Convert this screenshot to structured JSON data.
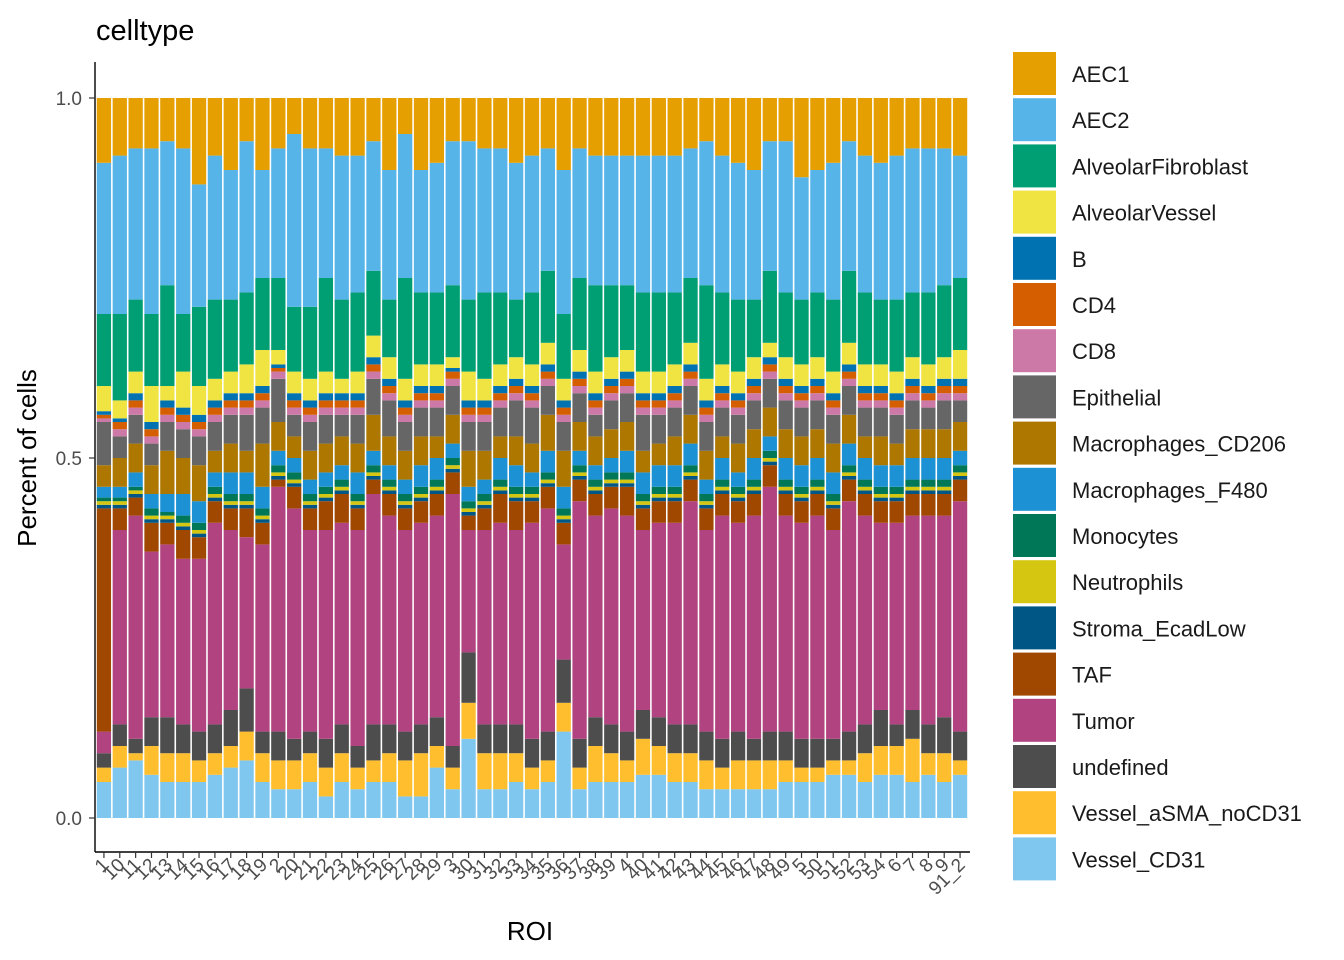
{
  "chart_data": {
    "type": "bar",
    "stacked": true,
    "title": "celltype",
    "xlabel": "ROI",
    "ylabel": "Percent of cells",
    "ylim": [
      0,
      1
    ],
    "yticks": [
      "0.0",
      "0.5",
      "1.0"
    ],
    "grid": false,
    "legend_position": "right",
    "categories": [
      "1",
      "10",
      "11",
      "12",
      "13",
      "14",
      "15",
      "16",
      "17",
      "18",
      "19",
      "2",
      "20",
      "21",
      "22",
      "23",
      "24",
      "25",
      "26",
      "27",
      "28",
      "29",
      "3",
      "30",
      "31",
      "32",
      "33",
      "34",
      "35",
      "36",
      "37",
      "38",
      "39",
      "4",
      "40",
      "41",
      "42",
      "43",
      "44",
      "45",
      "46",
      "47",
      "48",
      "49",
      "5",
      "50",
      "51",
      "52",
      "53",
      "54",
      "6",
      "7",
      "8",
      "9",
      "91_2"
    ],
    "x_tick_labels": [
      "1",
      "10",
      "11",
      "12",
      "13",
      "14",
      "15",
      "16",
      "17",
      "18",
      "19",
      "2",
      "20",
      "21",
      "22",
      "23",
      "24",
      "25",
      "26",
      "27",
      "28",
      "29",
      "3",
      "30",
      "31",
      "32",
      "33",
      "34",
      "35",
      "36",
      "37",
      "38",
      "39",
      "4",
      "40",
      "41",
      "42",
      "43",
      "44",
      "45",
      "46",
      "47",
      "48",
      "49",
      "5",
      "50",
      "51",
      "52",
      "53",
      "54",
      "6",
      "7",
      "8",
      "9",
      "91_2"
    ],
    "series_order_bottom_to_top": [
      "Vessel_CD31",
      "Vessel_aSMA_noCD31",
      "undefined",
      "Tumor",
      "TAF",
      "Stroma_EcadLow",
      "Neutrophils",
      "Monocytes",
      "Macrophages_F480",
      "Macrophages_CD206",
      "Epithelial",
      "CD8",
      "CD4",
      "B",
      "AlveolarVessel",
      "AlveolarFibroblast",
      "AEC2",
      "AEC1"
    ],
    "series": [
      {
        "name": "AEC1",
        "color": "#E69F00"
      },
      {
        "name": "AEC2",
        "color": "#56B4E9"
      },
      {
        "name": "AlveolarFibroblast",
        "color": "#009E73"
      },
      {
        "name": "AlveolarVessel",
        "color": "#F0E442"
      },
      {
        "name": "B",
        "color": "#0072B2"
      },
      {
        "name": "CD4",
        "color": "#D55E00"
      },
      {
        "name": "CD8",
        "color": "#CC79A7"
      },
      {
        "name": "Epithelial",
        "color": "#666666"
      },
      {
        "name": "Macrophages_CD206",
        "color": "#AD7700"
      },
      {
        "name": "Macrophages_F480",
        "color": "#1C91D4"
      },
      {
        "name": "Monocytes",
        "color": "#007756"
      },
      {
        "name": "Neutrophils",
        "color": "#D5C711"
      },
      {
        "name": "Stroma_EcadLow",
        "color": "#005685"
      },
      {
        "name": "TAF",
        "color": "#A04700"
      },
      {
        "name": "Tumor",
        "color": "#B14380"
      },
      {
        "name": "undefined",
        "color": "#4D4D4D"
      },
      {
        "name": "Vessel_aSMA_noCD31",
        "color": "#FFBE2D"
      },
      {
        "name": "Vessel_CD31",
        "color": "#80C7EF"
      }
    ],
    "cumulative_tops_bottom_to_top": [
      [
        0.05,
        0.07,
        0.09,
        0.12,
        0.43,
        0.435,
        0.44,
        0.445,
        0.46,
        0.49,
        0.55,
        0.555,
        0.56,
        0.565,
        0.6,
        0.7,
        0.91,
        1.0
      ],
      [
        0.07,
        0.1,
        0.13,
        0.4,
        0.43,
        0.435,
        0.44,
        0.445,
        0.46,
        0.5,
        0.53,
        0.54,
        0.55,
        0.555,
        0.58,
        0.7,
        0.92,
        1.0
      ],
      [
        0.08,
        0.09,
        0.11,
        0.42,
        0.445,
        0.45,
        0.455,
        0.46,
        0.48,
        0.52,
        0.56,
        0.57,
        0.58,
        0.59,
        0.62,
        0.72,
        0.93,
        1.0
      ],
      [
        0.06,
        0.1,
        0.14,
        0.37,
        0.41,
        0.415,
        0.42,
        0.43,
        0.45,
        0.49,
        0.52,
        0.53,
        0.54,
        0.55,
        0.6,
        0.7,
        0.93,
        1.0
      ],
      [
        0.05,
        0.09,
        0.14,
        0.38,
        0.41,
        0.415,
        0.42,
        0.425,
        0.45,
        0.51,
        0.55,
        0.56,
        0.57,
        0.58,
        0.6,
        0.74,
        0.94,
        1.0
      ],
      [
        0.05,
        0.09,
        0.13,
        0.36,
        0.4,
        0.405,
        0.41,
        0.42,
        0.45,
        0.5,
        0.54,
        0.55,
        0.56,
        0.57,
        0.62,
        0.7,
        0.93,
        1.0
      ],
      [
        0.05,
        0.08,
        0.12,
        0.36,
        0.39,
        0.395,
        0.4,
        0.41,
        0.44,
        0.49,
        0.53,
        0.54,
        0.55,
        0.56,
        0.6,
        0.71,
        0.88,
        1.0
      ],
      [
        0.06,
        0.09,
        0.13,
        0.41,
        0.44,
        0.445,
        0.45,
        0.46,
        0.48,
        0.51,
        0.55,
        0.56,
        0.57,
        0.58,
        0.61,
        0.72,
        0.92,
        1.0
      ],
      [
        0.07,
        0.1,
        0.15,
        0.4,
        0.43,
        0.435,
        0.44,
        0.45,
        0.48,
        0.52,
        0.56,
        0.57,
        0.58,
        0.59,
        0.62,
        0.72,
        0.9,
        1.0
      ],
      [
        0.08,
        0.12,
        0.18,
        0.39,
        0.43,
        0.435,
        0.44,
        0.45,
        0.48,
        0.51,
        0.56,
        0.57,
        0.58,
        0.59,
        0.63,
        0.73,
        0.94,
        1.0
      ],
      [
        0.05,
        0.09,
        0.12,
        0.38,
        0.41,
        0.415,
        0.42,
        0.43,
        0.46,
        0.52,
        0.57,
        0.58,
        0.59,
        0.6,
        0.65,
        0.75,
        0.9,
        1.0
      ],
      [
        0.04,
        0.08,
        0.12,
        0.46,
        0.47,
        0.475,
        0.48,
        0.49,
        0.51,
        0.55,
        0.61,
        0.62,
        0.625,
        0.63,
        0.65,
        0.75,
        0.93,
        1.0
      ],
      [
        0.04,
        0.08,
        0.11,
        0.43,
        0.46,
        0.465,
        0.47,
        0.48,
        0.5,
        0.53,
        0.56,
        0.57,
        0.58,
        0.59,
        0.62,
        0.71,
        0.95,
        1.0
      ],
      [
        0.05,
        0.09,
        0.12,
        0.4,
        0.43,
        0.435,
        0.44,
        0.45,
        0.47,
        0.51,
        0.55,
        0.56,
        0.57,
        0.58,
        0.61,
        0.71,
        0.93,
        1.0
      ],
      [
        0.03,
        0.07,
        0.11,
        0.4,
        0.44,
        0.445,
        0.45,
        0.46,
        0.48,
        0.52,
        0.56,
        0.57,
        0.58,
        0.59,
        0.62,
        0.75,
        0.93,
        1.0
      ],
      [
        0.05,
        0.09,
        0.13,
        0.41,
        0.45,
        0.455,
        0.46,
        0.47,
        0.49,
        0.53,
        0.56,
        0.57,
        0.58,
        0.59,
        0.61,
        0.72,
        0.92,
        1.0
      ],
      [
        0.04,
        0.07,
        0.1,
        0.4,
        0.43,
        0.435,
        0.44,
        0.45,
        0.48,
        0.52,
        0.56,
        0.57,
        0.58,
        0.59,
        0.62,
        0.73,
        0.92,
        1.0
      ],
      [
        0.05,
        0.08,
        0.13,
        0.45,
        0.47,
        0.475,
        0.48,
        0.49,
        0.51,
        0.56,
        0.61,
        0.62,
        0.63,
        0.64,
        0.67,
        0.76,
        0.94,
        1.0
      ],
      [
        0.05,
        0.09,
        0.13,
        0.42,
        0.45,
        0.455,
        0.46,
        0.47,
        0.49,
        0.53,
        0.58,
        0.59,
        0.6,
        0.61,
        0.64,
        0.72,
        0.9,
        1.0
      ],
      [
        0.03,
        0.08,
        0.12,
        0.4,
        0.43,
        0.435,
        0.44,
        0.45,
        0.47,
        0.51,
        0.55,
        0.56,
        0.57,
        0.58,
        0.61,
        0.75,
        0.95,
        1.0
      ],
      [
        0.03,
        0.09,
        0.13,
        0.41,
        0.44,
        0.445,
        0.45,
        0.46,
        0.49,
        0.53,
        0.57,
        0.58,
        0.59,
        0.6,
        0.63,
        0.73,
        0.9,
        1.0
      ],
      [
        0.07,
        0.1,
        0.14,
        0.42,
        0.45,
        0.455,
        0.46,
        0.47,
        0.5,
        0.53,
        0.57,
        0.58,
        0.59,
        0.6,
        0.63,
        0.73,
        0.91,
        1.0
      ],
      [
        0.04,
        0.07,
        0.1,
        0.45,
        0.48,
        0.485,
        0.49,
        0.5,
        0.52,
        0.56,
        0.6,
        0.61,
        0.62,
        0.625,
        0.64,
        0.74,
        0.94,
        1.0
      ],
      [
        0.11,
        0.16,
        0.23,
        0.4,
        0.42,
        0.425,
        0.43,
        0.44,
        0.46,
        0.51,
        0.55,
        0.56,
        0.57,
        0.58,
        0.62,
        0.72,
        0.94,
        1.0
      ],
      [
        0.04,
        0.09,
        0.13,
        0.4,
        0.43,
        0.435,
        0.44,
        0.45,
        0.47,
        0.51,
        0.55,
        0.56,
        0.57,
        0.58,
        0.61,
        0.73,
        0.93,
        1.0
      ],
      [
        0.04,
        0.09,
        0.13,
        0.41,
        0.45,
        0.455,
        0.46,
        0.47,
        0.5,
        0.53,
        0.57,
        0.58,
        0.59,
        0.6,
        0.63,
        0.73,
        0.93,
        1.0
      ],
      [
        0.05,
        0.09,
        0.13,
        0.4,
        0.44,
        0.445,
        0.45,
        0.46,
        0.49,
        0.53,
        0.58,
        0.59,
        0.6,
        0.61,
        0.64,
        0.72,
        0.91,
        1.0
      ],
      [
        0.04,
        0.07,
        0.11,
        0.41,
        0.44,
        0.445,
        0.45,
        0.46,
        0.48,
        0.52,
        0.57,
        0.58,
        0.59,
        0.6,
        0.63,
        0.73,
        0.92,
        1.0
      ],
      [
        0.05,
        0.08,
        0.12,
        0.43,
        0.46,
        0.465,
        0.47,
        0.48,
        0.51,
        0.56,
        0.6,
        0.61,
        0.62,
        0.63,
        0.66,
        0.76,
        0.93,
        1.0
      ],
      [
        0.12,
        0.16,
        0.22,
        0.38,
        0.41,
        0.415,
        0.42,
        0.43,
        0.46,
        0.51,
        0.55,
        0.56,
        0.57,
        0.58,
        0.61,
        0.7,
        0.9,
        1.0
      ],
      [
        0.04,
        0.07,
        0.11,
        0.44,
        0.47,
        0.475,
        0.48,
        0.49,
        0.51,
        0.55,
        0.59,
        0.6,
        0.61,
        0.62,
        0.65,
        0.75,
        0.93,
        1.0
      ],
      [
        0.05,
        0.1,
        0.14,
        0.42,
        0.45,
        0.455,
        0.46,
        0.47,
        0.49,
        0.53,
        0.56,
        0.57,
        0.58,
        0.59,
        0.62,
        0.74,
        0.92,
        1.0
      ],
      [
        0.05,
        0.09,
        0.13,
        0.43,
        0.46,
        0.465,
        0.47,
        0.48,
        0.5,
        0.54,
        0.58,
        0.59,
        0.6,
        0.61,
        0.64,
        0.74,
        0.92,
        1.0
      ],
      [
        0.05,
        0.08,
        0.12,
        0.42,
        0.46,
        0.465,
        0.47,
        0.48,
        0.51,
        0.55,
        0.59,
        0.6,
        0.61,
        0.62,
        0.65,
        0.74,
        0.92,
        1.0
      ],
      [
        0.06,
        0.11,
        0.15,
        0.4,
        0.43,
        0.435,
        0.44,
        0.45,
        0.48,
        0.51,
        0.56,
        0.57,
        0.58,
        0.59,
        0.62,
        0.73,
        0.92,
        1.0
      ],
      [
        0.06,
        0.1,
        0.14,
        0.41,
        0.44,
        0.445,
        0.45,
        0.46,
        0.49,
        0.52,
        0.56,
        0.57,
        0.58,
        0.59,
        0.62,
        0.73,
        0.92,
        1.0
      ],
      [
        0.05,
        0.09,
        0.13,
        0.41,
        0.44,
        0.445,
        0.45,
        0.46,
        0.49,
        0.53,
        0.57,
        0.58,
        0.59,
        0.6,
        0.63,
        0.73,
        0.92,
        1.0
      ],
      [
        0.05,
        0.09,
        0.13,
        0.44,
        0.47,
        0.475,
        0.48,
        0.49,
        0.52,
        0.56,
        0.6,
        0.61,
        0.62,
        0.63,
        0.66,
        0.75,
        0.93,
        1.0
      ],
      [
        0.04,
        0.08,
        0.12,
        0.4,
        0.43,
        0.435,
        0.44,
        0.45,
        0.47,
        0.51,
        0.55,
        0.56,
        0.57,
        0.58,
        0.61,
        0.74,
        0.94,
        1.0
      ],
      [
        0.04,
        0.07,
        0.11,
        0.42,
        0.45,
        0.455,
        0.46,
        0.47,
        0.5,
        0.53,
        0.57,
        0.58,
        0.59,
        0.6,
        0.63,
        0.73,
        0.92,
        1.0
      ],
      [
        0.04,
        0.08,
        0.12,
        0.41,
        0.44,
        0.445,
        0.45,
        0.46,
        0.48,
        0.52,
        0.56,
        0.57,
        0.58,
        0.59,
        0.62,
        0.72,
        0.91,
        1.0
      ],
      [
        0.04,
        0.08,
        0.11,
        0.42,
        0.45,
        0.455,
        0.46,
        0.47,
        0.5,
        0.54,
        0.58,
        0.59,
        0.6,
        0.61,
        0.64,
        0.72,
        0.9,
        1.0
      ],
      [
        0.04,
        0.08,
        0.12,
        0.46,
        0.49,
        0.495,
        0.5,
        0.51,
        0.53,
        0.57,
        0.61,
        0.62,
        0.63,
        0.64,
        0.66,
        0.76,
        0.94,
        1.0
      ],
      [
        0.05,
        0.08,
        0.12,
        0.42,
        0.45,
        0.455,
        0.46,
        0.47,
        0.5,
        0.54,
        0.58,
        0.59,
        0.6,
        0.61,
        0.64,
        0.73,
        0.94,
        1.0
      ],
      [
        0.05,
        0.07,
        0.11,
        0.41,
        0.44,
        0.445,
        0.45,
        0.46,
        0.49,
        0.53,
        0.57,
        0.58,
        0.59,
        0.6,
        0.63,
        0.72,
        0.89,
        1.0
      ],
      [
        0.05,
        0.07,
        0.11,
        0.42,
        0.45,
        0.455,
        0.46,
        0.47,
        0.5,
        0.54,
        0.58,
        0.59,
        0.6,
        0.61,
        0.64,
        0.73,
        0.9,
        1.0
      ],
      [
        0.06,
        0.08,
        0.11,
        0.4,
        0.43,
        0.435,
        0.44,
        0.45,
        0.48,
        0.52,
        0.56,
        0.57,
        0.58,
        0.59,
        0.62,
        0.72,
        0.91,
        1.0
      ],
      [
        0.06,
        0.08,
        0.12,
        0.44,
        0.47,
        0.475,
        0.48,
        0.49,
        0.52,
        0.56,
        0.6,
        0.61,
        0.62,
        0.63,
        0.66,
        0.76,
        0.94,
        1.0
      ],
      [
        0.05,
        0.09,
        0.13,
        0.42,
        0.45,
        0.455,
        0.46,
        0.47,
        0.5,
        0.53,
        0.57,
        0.58,
        0.59,
        0.6,
        0.63,
        0.73,
        0.92,
        1.0
      ],
      [
        0.06,
        0.1,
        0.15,
        0.41,
        0.44,
        0.445,
        0.45,
        0.46,
        0.49,
        0.53,
        0.57,
        0.58,
        0.59,
        0.6,
        0.63,
        0.72,
        0.91,
        1.0
      ],
      [
        0.06,
        0.1,
        0.13,
        0.41,
        0.44,
        0.445,
        0.45,
        0.46,
        0.49,
        0.52,
        0.56,
        0.57,
        0.58,
        0.59,
        0.62,
        0.72,
        0.92,
        1.0
      ],
      [
        0.05,
        0.11,
        0.15,
        0.42,
        0.45,
        0.455,
        0.46,
        0.47,
        0.5,
        0.54,
        0.58,
        0.59,
        0.6,
        0.61,
        0.64,
        0.73,
        0.93,
        1.0
      ],
      [
        0.06,
        0.09,
        0.13,
        0.42,
        0.45,
        0.455,
        0.46,
        0.47,
        0.5,
        0.54,
        0.57,
        0.58,
        0.59,
        0.6,
        0.63,
        0.73,
        0.93,
        1.0
      ],
      [
        0.05,
        0.09,
        0.14,
        0.42,
        0.45,
        0.455,
        0.46,
        0.47,
        0.5,
        0.54,
        0.58,
        0.59,
        0.6,
        0.61,
        0.64,
        0.74,
        0.93,
        1.0
      ],
      [
        0.06,
        0.08,
        0.12,
        0.44,
        0.47,
        0.475,
        0.48,
        0.49,
        0.51,
        0.55,
        0.58,
        0.59,
        0.6,
        0.61,
        0.65,
        0.75,
        0.92,
        1.0
      ]
    ]
  }
}
